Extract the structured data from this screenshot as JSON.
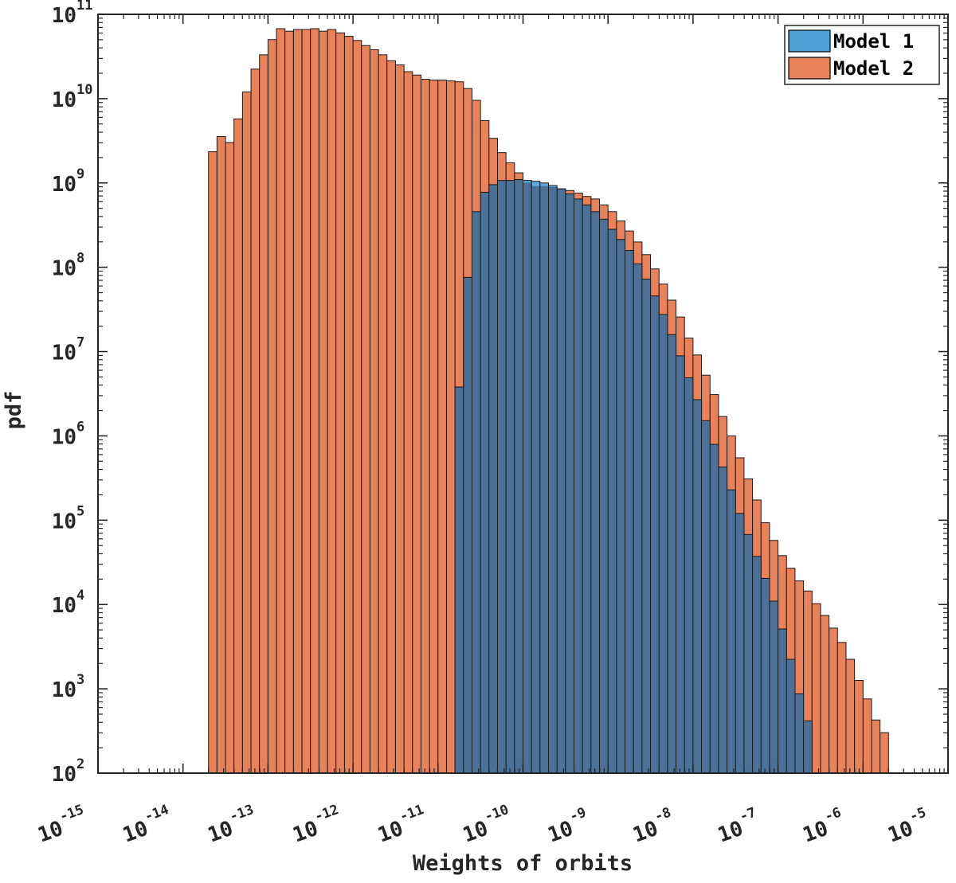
{
  "chart_data": {
    "type": "bar",
    "subtype": "overlaid-histogram",
    "title": "",
    "xlabel": "Weights of orbits",
    "ylabel": "pdf",
    "x_scale": "log",
    "y_scale": "log",
    "xlim": [
      1e-15,
      1e-05
    ],
    "ylim": [
      100,
      100000000000
    ],
    "x_tick_exponents": [
      -15,
      -14,
      -13,
      -12,
      -11,
      -10,
      -9,
      -8,
      -7,
      -6,
      -5
    ],
    "x_tick_labels": [
      "10",
      "10",
      "10",
      "10",
      "10",
      "10",
      "10",
      "10",
      "10",
      "10",
      "10"
    ],
    "x_tick_exp_labels": [
      "-15",
      "-14",
      "-13",
      "-12",
      "-11",
      "-10",
      "-9",
      "-8",
      "-7",
      "-6",
      "-5"
    ],
    "y_tick_exponents": [
      2,
      3,
      4,
      5,
      6,
      7,
      8,
      9,
      10,
      11
    ],
    "y_tick_labels": [
      "10",
      "10",
      "10",
      "10",
      "10",
      "10",
      "10",
      "10",
      "10",
      "10"
    ],
    "y_tick_exp_labels": [
      "2",
      "3",
      "4",
      "5",
      "6",
      "7",
      "8",
      "9",
      "10",
      "11"
    ],
    "grid": false,
    "legend_position": "top-right",
    "bin_width_decades": 0.1,
    "series": [
      {
        "name": "Model 2",
        "color": "#e8825a",
        "bin_start_exponent": -13.7,
        "log10_values": [
          9.37,
          9.55,
          9.48,
          9.76,
          10.08,
          10.35,
          10.52,
          10.7,
          10.83,
          10.8,
          10.82,
          10.82,
          10.83,
          10.8,
          10.82,
          10.78,
          10.74,
          10.69,
          10.63,
          10.58,
          10.52,
          10.45,
          10.4,
          10.32,
          10.28,
          10.23,
          10.22,
          10.22,
          10.21,
          10.2,
          10.12,
          9.98,
          9.74,
          9.53,
          9.36,
          9.24,
          9.12,
          9.0,
          8.96,
          8.96,
          8.95,
          8.93,
          8.91,
          8.88,
          8.84,
          8.81,
          8.74,
          8.66,
          8.55,
          8.43,
          8.3,
          8.15,
          7.98,
          7.8,
          7.61,
          7.41,
          7.16,
          6.96,
          6.72,
          6.49,
          6.23,
          6.0,
          5.74,
          5.49,
          5.24,
          4.97,
          4.76,
          4.58,
          4.43,
          4.28,
          4.16,
          4.01,
          3.87,
          3.72,
          3.55,
          3.35,
          3.1,
          2.88,
          2.63,
          2.48
        ]
      },
      {
        "name": "Model 1",
        "color": "#4f9fd8",
        "bin_start_exponent": -10.8,
        "log10_values": [
          6.58,
          7.88,
          8.66,
          8.89,
          8.98,
          9.03,
          9.03,
          9.04,
          9.03,
          9.02,
          9.0,
          8.97,
          8.93,
          8.87,
          8.81,
          8.74,
          8.66,
          8.57,
          8.45,
          8.33,
          8.2,
          8.04,
          7.86,
          7.66,
          7.44,
          7.2,
          6.95,
          6.69,
          6.43,
          6.18,
          5.9,
          5.63,
          5.36,
          5.08,
          4.83,
          4.57,
          4.31,
          4.04,
          3.71,
          3.35,
          2.94,
          2.62
        ]
      }
    ],
    "model1_visible_opacity": 0.9,
    "overlap_color": "#4c7196"
  }
}
